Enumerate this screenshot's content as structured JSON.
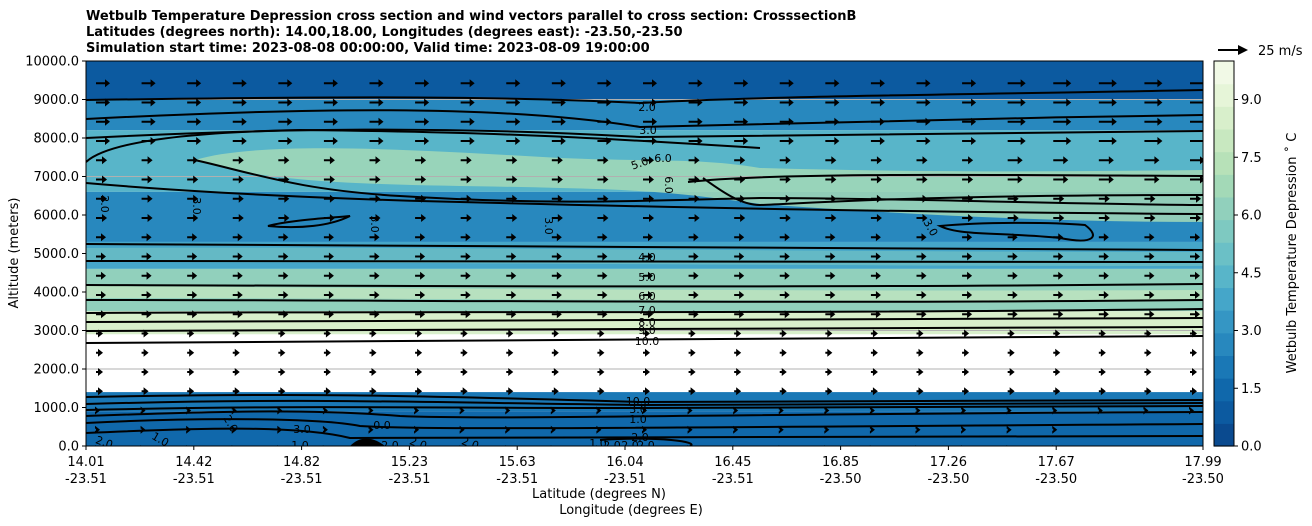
{
  "chart_data": {
    "type": "contour-cross-section",
    "title_lines": [
      "Wetbulb Temperature Depression cross section and wind vectors parallel to cross section: CrosssectionB",
      "Latitudes (degrees north): 14.00,18.00, Longitudes (degrees east): -23.50,-23.50",
      "Simulation start time: 2023-08-08 00:00:00, Valid time: 2023-08-09 19:00:00"
    ],
    "ylabel": "Altitude (meters)",
    "xlabel_lat": "Latitude (degrees N)",
    "xlabel_lon": "Longitude (degrees E)",
    "ylim": [
      0,
      10000
    ],
    "yticks": [
      "0.0",
      "1000.0",
      "2000.0",
      "3000.0",
      "4000.0",
      "5000.0",
      "6000.0",
      "7000.0",
      "8000.0",
      "9000.0",
      "10000.0"
    ],
    "xticks_lat": [
      "14.01",
      "14.42",
      "14.82",
      "15.23",
      "15.63",
      "16.04",
      "16.45",
      "16.85",
      "17.26",
      "17.67",
      "17.99"
    ],
    "xticks_lon": [
      "-23.51",
      "-23.51",
      "-23.51",
      "-23.51",
      "-23.51",
      "-23.51",
      "-23.51",
      "-23.50",
      "-23.50",
      "-23.50",
      "-23.50"
    ],
    "colorbar": {
      "label": "Wetbulb Temperature Depression ˚ C",
      "range": [
        0,
        10
      ],
      "ticks": [
        "0.0",
        "1.5",
        "3.0",
        "4.5",
        "6.0",
        "7.5",
        "9.0"
      ],
      "colors": [
        "#0a4a8f",
        "#0c5aa0",
        "#1068ab",
        "#1a78b6",
        "#2888be",
        "#3596c4",
        "#45a6c9",
        "#58b5c9",
        "#6bc0c6",
        "#7ec9c1",
        "#91d0bc",
        "#a3d9b7",
        "#b7e1b8",
        "#c8e8c0",
        "#d8efcb",
        "#e6f5d8",
        "#f1f9e6"
      ]
    },
    "wind_legend": "25 m/s",
    "contour_labels": [
      "2.0",
      "3.0",
      "5.0",
      "6.0",
      "6.0",
      "2.0",
      "3.0",
      "3.0",
      "3.0",
      "3.0",
      "4.0",
      "5.0",
      "6.0",
      "7.0",
      "8.0",
      "9.0",
      "10.0",
      "10.0",
      "3.0",
      "1.0",
      "0.0",
      "3.0",
      "2.0",
      "1.0",
      "2.0",
      "2.0",
      "2.0",
      "2.0",
      "2.0",
      "2.0",
      "1.0",
      "2.0",
      "2.0",
      "1.0"
    ],
    "bands": [
      {
        "z": [
          9000,
          10000
        ],
        "value": 1.0
      },
      {
        "z": [
          8200,
          9000
        ],
        "value": 2.4
      },
      {
        "z": [
          6600,
          8200
        ],
        "value": 4.2
      },
      {
        "z": [
          5300,
          6600
        ],
        "value": 2.7
      },
      {
        "z": [
          4600,
          5300
        ],
        "value": 3.6
      },
      {
        "z": [
          3500,
          4600
        ],
        "value": 6.0
      },
      {
        "z": [
          2900,
          3500
        ],
        "value": 8.5
      },
      {
        "z": [
          1400,
          2900
        ],
        "value": 10.5
      },
      {
        "z": [
          900,
          1400
        ],
        "value": 1.8
      },
      {
        "z": [
          0,
          900
        ],
        "value": 1.2
      }
    ]
  }
}
